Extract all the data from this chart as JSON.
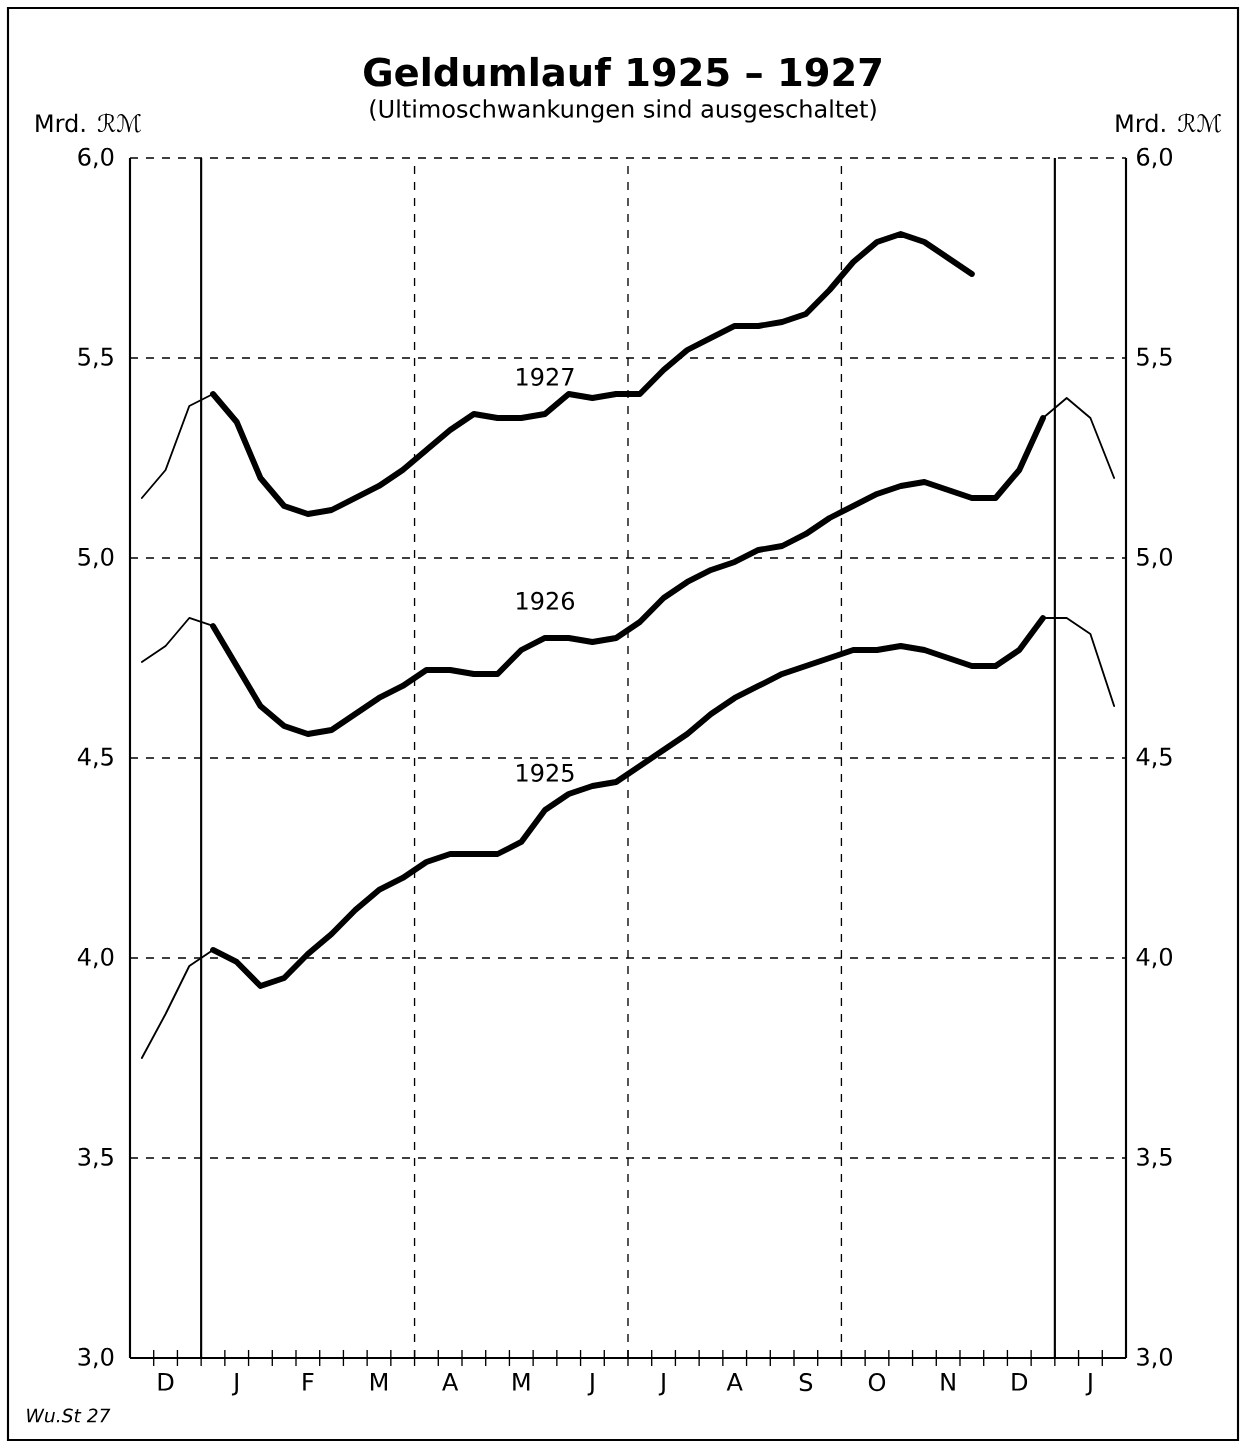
{
  "chart_data": {
    "type": "line",
    "title": "Geldumlauf  1925 – 1927",
    "subtitle": "(Ultimoschwankungen sind ausgeschaltet)",
    "ylabel": "Mrd. ℛℳ",
    "y2label": "Mrd. ℛℳ",
    "categories": [
      null,
      "D",
      null,
      null,
      "J",
      null,
      null,
      "F",
      null,
      null,
      "M",
      null,
      null,
      "A",
      null,
      null,
      "M",
      null,
      null,
      "J",
      null,
      null,
      "J",
      null,
      null,
      "A",
      null,
      null,
      "S",
      null,
      null,
      "O",
      null,
      null,
      "N",
      null,
      null,
      "D",
      null,
      null,
      "J",
      null
    ],
    "ylim": [
      3.0,
      6.0
    ],
    "yticks": [
      {
        "value": 3.0,
        "label": "3,0"
      },
      {
        "value": 3.5,
        "label": "3,5"
      },
      {
        "value": 4.0,
        "label": "4,0"
      },
      {
        "value": 4.5,
        "label": "4,5"
      },
      {
        "value": 5.0,
        "label": "5,0"
      },
      {
        "value": 5.5,
        "label": "5,5"
      },
      {
        "value": 6.0,
        "label": "6,0"
      }
    ],
    "y2lim": [
      3.0,
      6.0
    ],
    "y2ticks": [
      {
        "value": 3.0,
        "label": "3,0"
      },
      {
        "value": 3.5,
        "label": "3,5"
      },
      {
        "value": 4.0,
        "label": "4,0"
      },
      {
        "value": 4.5,
        "label": "4,5"
      },
      {
        "value": 5.0,
        "label": "5,0"
      },
      {
        "value": 5.5,
        "label": "5,5"
      },
      {
        "value": 6.0,
        "label": "6,0"
      }
    ],
    "grid": "y",
    "marker": "none",
    "line_style": "solid",
    "series": [
      {
        "name": "1927",
        "color": "#000000",
        "values": [
          null,
          null,
          null,
          5.41,
          5.34,
          5.2,
          5.13,
          5.11,
          5.12,
          5.15,
          5.18,
          5.22,
          5.27,
          5.32,
          5.36,
          5.35,
          5.35,
          5.36,
          5.41,
          5.4,
          5.41,
          5.41,
          5.47,
          5.52,
          5.55,
          5.58,
          5.58,
          5.59,
          5.61,
          5.67,
          5.74,
          5.79,
          5.81,
          5.79,
          5.75,
          5.71,
          null,
          null,
          null,
          null,
          null,
          null
        ]
      },
      {
        "color": "#000000",
        "values": [
          5.15,
          5.22,
          5.38,
          5.41,
          null,
          null,
          null,
          null,
          null,
          null,
          null,
          null,
          null,
          null,
          null,
          null,
          null,
          null,
          null,
          null,
          null,
          null,
          null,
          null,
          null,
          null,
          null,
          null,
          null,
          null,
          null,
          null,
          null,
          null,
          null,
          null,
          null,
          null,
          null,
          null,
          null,
          null
        ]
      },
      {
        "name": "1926",
        "color": "#000000",
        "values": [
          null,
          null,
          null,
          4.83,
          4.73,
          4.63,
          4.58,
          4.56,
          4.57,
          4.61,
          4.65,
          4.68,
          4.72,
          4.72,
          4.71,
          4.71,
          4.77,
          4.8,
          4.8,
          4.79,
          4.8,
          4.84,
          4.9,
          4.94,
          4.97,
          4.99,
          5.02,
          5.03,
          5.06,
          5.1,
          5.13,
          5.16,
          5.18,
          5.19,
          5.17,
          5.15,
          5.15,
          5.22,
          5.35,
          null,
          null,
          null
        ]
      },
      {
        "color": "#000000",
        "values": [
          4.74,
          4.78,
          4.85,
          4.83,
          null,
          null,
          null,
          null,
          null,
          null,
          null,
          null,
          null,
          null,
          null,
          null,
          null,
          null,
          null,
          null,
          null,
          null,
          null,
          null,
          null,
          null,
          null,
          null,
          null,
          null,
          null,
          null,
          null,
          null,
          null,
          null,
          null,
          null,
          null,
          null,
          null,
          null
        ]
      },
      {
        "color": "#000000",
        "values": [
          null,
          null,
          null,
          null,
          null,
          null,
          null,
          null,
          null,
          null,
          null,
          null,
          null,
          null,
          null,
          null,
          null,
          null,
          null,
          null,
          null,
          null,
          null,
          null,
          null,
          null,
          null,
          null,
          null,
          null,
          null,
          null,
          null,
          null,
          null,
          null,
          null,
          null,
          5.35,
          5.4,
          5.35,
          5.2
        ]
      },
      {
        "name": "1925",
        "color": "#000000",
        "values": [
          null,
          null,
          null,
          4.02,
          3.99,
          3.93,
          3.95,
          4.01,
          4.06,
          4.12,
          4.17,
          4.2,
          4.24,
          4.26,
          4.26,
          4.26,
          4.29,
          4.37,
          4.41,
          4.43,
          4.44,
          4.48,
          4.52,
          4.56,
          4.61,
          4.65,
          4.68,
          4.71,
          4.73,
          4.75,
          4.77,
          4.77,
          4.78,
          4.77,
          4.75,
          4.73,
          4.73,
          4.77,
          4.85,
          null,
          null,
          null
        ]
      },
      {
        "color": "#000000",
        "values": [
          3.75,
          3.86,
          3.98,
          4.02,
          null,
          null,
          null,
          null,
          null,
          null,
          null,
          null,
          null,
          null,
          null,
          null,
          null,
          null,
          null,
          null,
          null,
          null,
          null,
          null,
          null,
          null,
          null,
          null,
          null,
          null,
          null,
          null,
          null,
          null,
          null,
          null,
          null,
          null,
          null,
          null,
          null,
          null
        ]
      },
      {
        "color": "#000000",
        "values": [
          null,
          null,
          null,
          null,
          null,
          null,
          null,
          null,
          null,
          null,
          null,
          null,
          null,
          null,
          null,
          null,
          null,
          null,
          null,
          null,
          null,
          null,
          null,
          null,
          null,
          null,
          null,
          null,
          null,
          null,
          null,
          null,
          null,
          null,
          null,
          null,
          null,
          null,
          4.85,
          4.85,
          4.81,
          4.63
        ]
      }
    ],
    "annotations": [
      "Wu.St 27"
    ]
  }
}
